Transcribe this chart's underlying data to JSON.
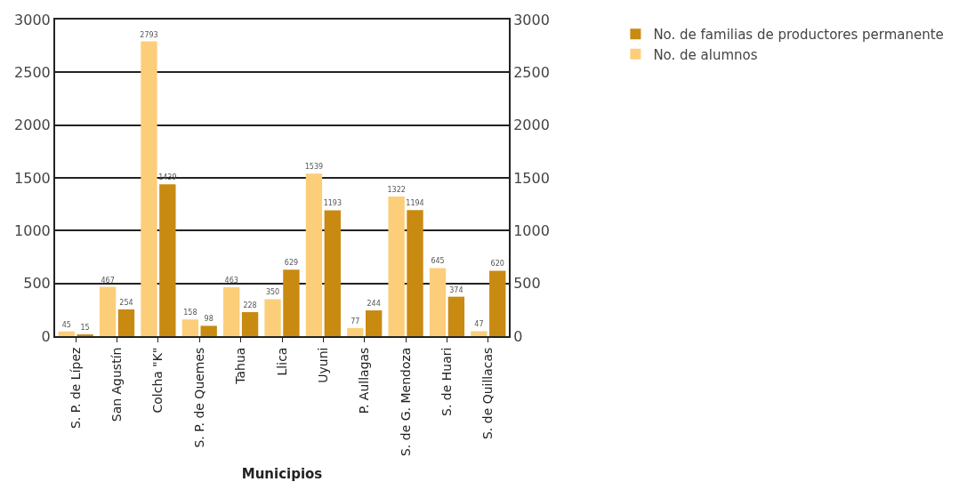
{
  "chart_data": {
    "type": "bar",
    "xlabel": "Municipios",
    "categories": [
      "S. P. de Lípez",
      "San Agustín",
      "Colcha \"K\"",
      "S. P. de Quemes",
      "Tahua",
      "Llica",
      "Uyuni",
      "P. Aullagas",
      "S. de G. Mendoza",
      "S. de Huari",
      "S. de Quillacas"
    ],
    "series": [
      {
        "name": "No. de alumnos",
        "color": "#fcce7a",
        "values": [
          45,
          467,
          2793,
          158,
          463,
          350,
          1539,
          77,
          1322,
          645,
          47
        ]
      },
      {
        "name": "No. de familias de productores permanente",
        "color": "#c98a12",
        "values": [
          15,
          254,
          1439,
          98,
          228,
          629,
          1193,
          244,
          1194,
          374,
          620
        ]
      }
    ],
    "ylim": [
      0,
      3000
    ],
    "yticks": [
      0,
      500,
      1000,
      1500,
      2000,
      2500,
      3000
    ],
    "y2lim": [
      0,
      3000
    ],
    "y2ticks": [
      0,
      500,
      1000,
      1500,
      2000,
      2500,
      3000
    ],
    "grid": "y",
    "legend": "top right",
    "data_labels": true
  }
}
